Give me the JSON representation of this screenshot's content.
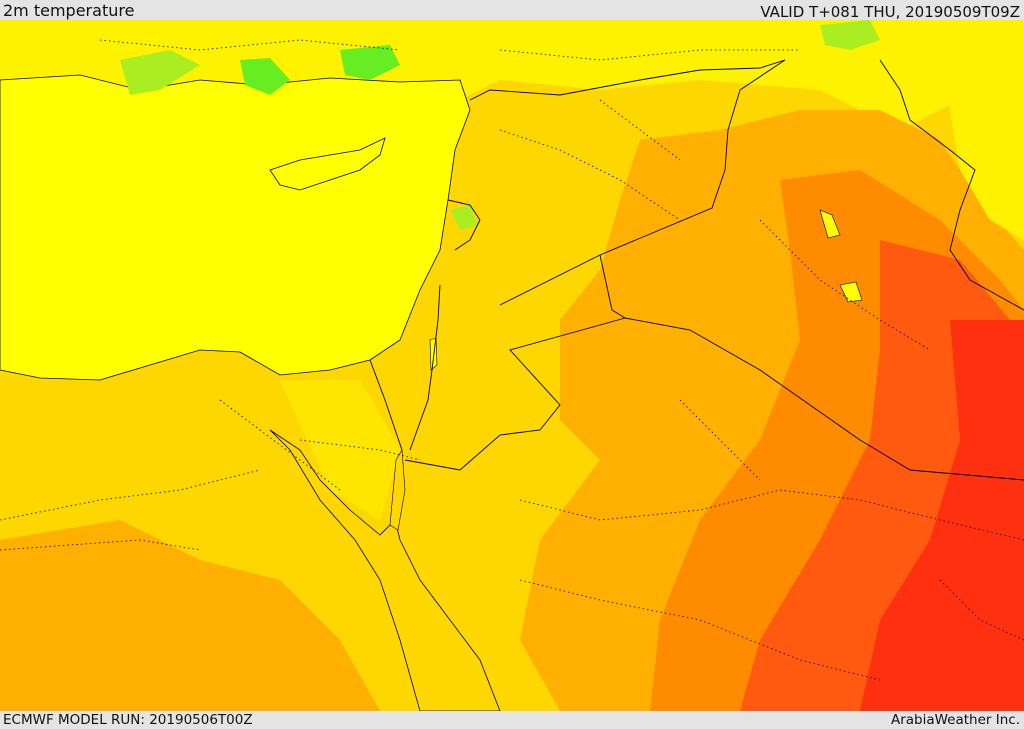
{
  "header": {
    "title": "2m temperature",
    "valid": "VALID T+081 THU, 20190509T09Z"
  },
  "footer": {
    "model_run": "ECMWF MODEL RUN: 20190506T00Z",
    "credit": "ArabiaWeather Inc."
  },
  "colors": {
    "sea_yellow": "#ffff00",
    "light_yellow": "#ffef00",
    "gold": "#ffd700",
    "orange": "#ffb000",
    "dark_orange": "#ff8c00",
    "red_orange": "#ff5a10",
    "red": "#ff3010",
    "green": "#66ee22",
    "border": "#000000"
  }
}
